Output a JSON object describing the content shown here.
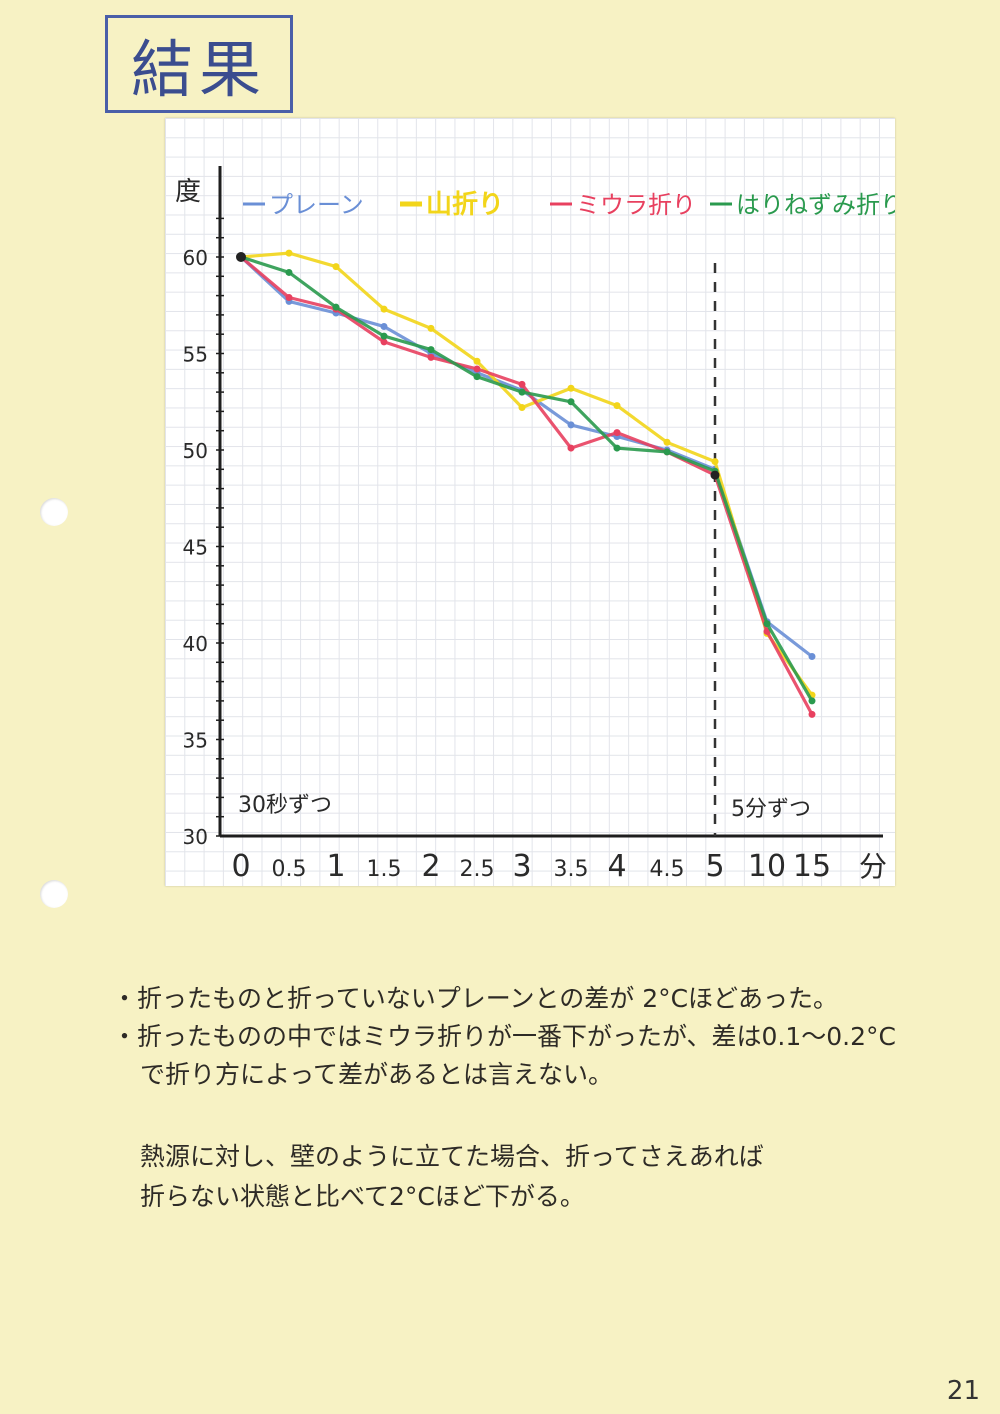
{
  "title": "結果",
  "chart_data": {
    "type": "line",
    "ylabel": "度",
    "y_ticks": [
      "60",
      "55",
      "50",
      "45",
      "40",
      "35",
      "30"
    ],
    "ylim": [
      30,
      62
    ],
    "categories": [
      "0",
      "0.5",
      "1",
      "1.5",
      "2",
      "2.5",
      "3",
      "3.5",
      "4",
      "4.5",
      "5",
      "10",
      "15"
    ],
    "x_unit": "分",
    "series": [
      {
        "name": "プレーン",
        "color": "#6a8fd6",
        "values": [
          60,
          57.7,
          57.1,
          56.4,
          55.0,
          54.0,
          53.1,
          51.3,
          50.7,
          50.0,
          49.0,
          41.1,
          39.3
        ]
      },
      {
        "name": "山折り",
        "color": "#f2d51a",
        "values": [
          60,
          60.2,
          59.5,
          57.3,
          56.3,
          54.6,
          52.2,
          53.2,
          52.3,
          50.4,
          49.4,
          40.5,
          37.3
        ]
      },
      {
        "name": "ミウラ折り",
        "color": "#e8405f",
        "values": [
          60,
          57.9,
          57.3,
          55.6,
          54.8,
          54.2,
          53.4,
          50.1,
          50.9,
          49.9,
          48.7,
          40.6,
          36.3
        ]
      },
      {
        "name": "はりねずみ折り",
        "color": "#2a9a4e",
        "values": [
          60,
          59.2,
          57.4,
          55.9,
          55.2,
          53.8,
          53.0,
          52.5,
          50.1,
          49.9,
          48.9,
          41.0,
          37.0
        ]
      }
    ],
    "annotations": {
      "left_interval": "30秒ずつ",
      "right_interval": "5分ずつ"
    },
    "divider_at": "5",
    "grid": true,
    "legend_placement": "top"
  },
  "notes": {
    "bullet1": "・折ったものと折っていないプレーンとの差が 2°Cほどあった。",
    "bullet2": "・折ったものの中ではミウラ折りが一番下がったが、差は0.1〜0.2°C",
    "bullet2_cont": "で折り方によって差があるとは言えない。",
    "conclusion1": "熱源に対し、壁のように立てた場合、折ってさえあれば",
    "conclusion2": "折らない状態と比べて2°Cほど下がる。"
  },
  "page_number": "21"
}
